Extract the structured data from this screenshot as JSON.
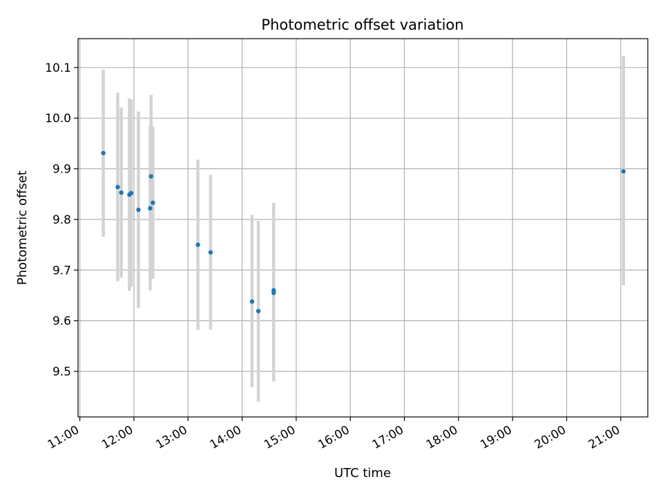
{
  "chart_data": {
    "type": "scatter",
    "title": "Photometric offset variation",
    "xlabel": "UTC time",
    "ylabel": "Photometric offset",
    "xlim": [
      "10:58",
      "21:30"
    ],
    "ylim": [
      9.41,
      10.157
    ],
    "grid": true,
    "legend": "none",
    "colors": {
      "point": "#1f77b4",
      "errorbar": "#d3d3d3",
      "grid": "#b0b0b0",
      "axes": "#000000"
    },
    "x_ticks": [
      "11:00",
      "12:00",
      "13:00",
      "14:00",
      "15:00",
      "16:00",
      "17:00",
      "18:00",
      "19:00",
      "20:00",
      "21:00"
    ],
    "y_ticks": [
      {
        "value": 9.5,
        "label": "9.5"
      },
      {
        "value": 9.6,
        "label": "9.6"
      },
      {
        "value": 9.7,
        "label": "9.7"
      },
      {
        "value": 9.8,
        "label": "9.8"
      },
      {
        "value": 9.9,
        "label": "9.9"
      },
      {
        "value": 10.0,
        "label": "10.0"
      },
      {
        "value": 10.1,
        "label": "10.1"
      }
    ],
    "points": [
      {
        "x": "11:26",
        "y": 9.931,
        "low": 9.766,
        "high": 10.096
      },
      {
        "x": "11:42",
        "y": 9.864,
        "low": 9.678,
        "high": 10.05
      },
      {
        "x": "11:46",
        "y": 9.853,
        "low": 9.685,
        "high": 10.021
      },
      {
        "x": "11:55",
        "y": 9.849,
        "low": 9.659,
        "high": 10.039
      },
      {
        "x": "11:57",
        "y": 9.852,
        "low": 9.667,
        "high": 10.037
      },
      {
        "x": "12:05",
        "y": 9.819,
        "low": 9.625,
        "high": 10.013
      },
      {
        "x": "12:18",
        "y": 9.822,
        "low": 9.66,
        "high": 9.984
      },
      {
        "x": "12:19",
        "y": 9.885,
        "low": 9.724,
        "high": 10.046
      },
      {
        "x": "12:21",
        "y": 9.833,
        "low": 9.683,
        "high": 9.983
      },
      {
        "x": "13:11",
        "y": 9.75,
        "low": 9.582,
        "high": 9.918
      },
      {
        "x": "13:25",
        "y": 9.735,
        "low": 9.582,
        "high": 9.888
      },
      {
        "x": "14:11",
        "y": 9.638,
        "low": 9.469,
        "high": 9.809
      },
      {
        "x": "14:18",
        "y": 9.619,
        "low": 9.44,
        "high": 9.797
      },
      {
        "x": "14:35",
        "y": 9.655,
        "low": 9.48,
        "high": 9.83
      },
      {
        "x": "14:35",
        "y": 9.66,
        "low": 9.49,
        "high": 9.833
      },
      {
        "x": "21:03",
        "y": 9.895,
        "low": 9.67,
        "high": 10.123
      }
    ]
  }
}
